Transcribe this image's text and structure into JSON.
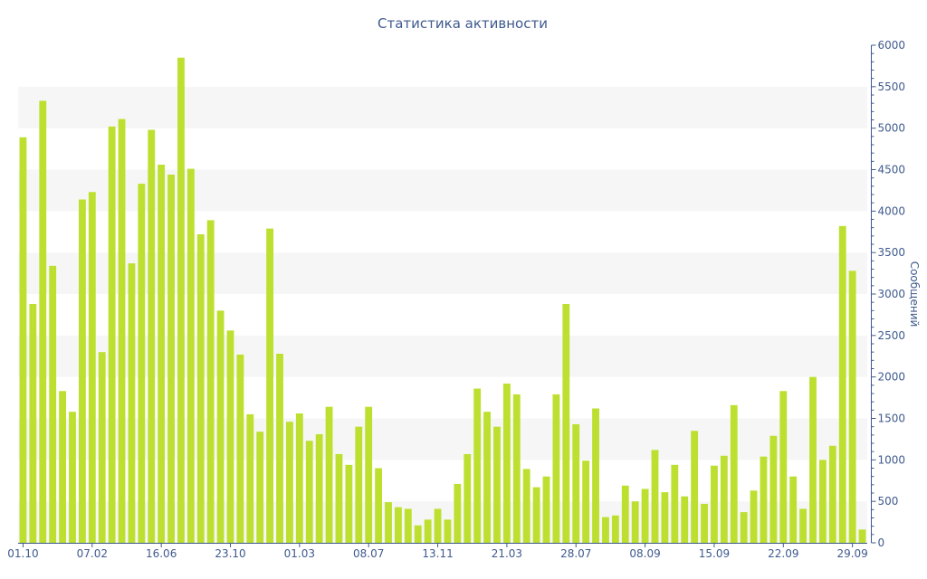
{
  "chart_data": {
    "type": "bar",
    "title": "Статистика активности",
    "xlabel": "",
    "ylabel": "Сообщений",
    "ylim": [
      0,
      6000
    ],
    "y_ticks": [
      0,
      500,
      1000,
      1500,
      2000,
      2500,
      3000,
      3500,
      4000,
      4500,
      5000,
      5500,
      6000
    ],
    "y_axis_side": "right",
    "grid": "alternating horizontal bands",
    "bar_color": "#bde030",
    "x_tick_labels": [
      {
        "index": 0,
        "label": "01.10"
      },
      {
        "index": 7,
        "label": "07.02"
      },
      {
        "index": 14,
        "label": "16.06"
      },
      {
        "index": 21,
        "label": "23.10"
      },
      {
        "index": 28,
        "label": "01.03"
      },
      {
        "index": 35,
        "label": "08.07"
      },
      {
        "index": 42,
        "label": "13.11"
      },
      {
        "index": 49,
        "label": "21.03"
      },
      {
        "index": 56,
        "label": "28.07"
      },
      {
        "index": 63,
        "label": "08.09"
      },
      {
        "index": 70,
        "label": "15.09"
      },
      {
        "index": 77,
        "label": "22.09"
      },
      {
        "index": 84,
        "label": "29.09"
      }
    ],
    "values": [
      4890,
      2880,
      5330,
      3340,
      1830,
      1580,
      4140,
      4230,
      2300,
      5020,
      5110,
      3370,
      4330,
      4980,
      4560,
      4440,
      5850,
      4510,
      3720,
      3890,
      2800,
      2560,
      2270,
      1550,
      1340,
      3790,
      2280,
      1460,
      1560,
      1230,
      1310,
      1640,
      1070,
      940,
      1400,
      1640,
      900,
      490,
      430,
      410,
      210,
      280,
      410,
      280,
      710,
      1070,
      1860,
      1580,
      1400,
      1920,
      1790,
      890,
      670,
      800,
      1790,
      2880,
      1430,
      990,
      1620,
      310,
      330,
      690,
      500,
      650,
      1120,
      610,
      940,
      560,
      1350,
      470,
      930,
      1050,
      1660,
      370,
      630,
      1040,
      1290,
      1830,
      800,
      410,
      2000,
      1000,
      1170,
      3820,
      3280,
      160
    ]
  }
}
